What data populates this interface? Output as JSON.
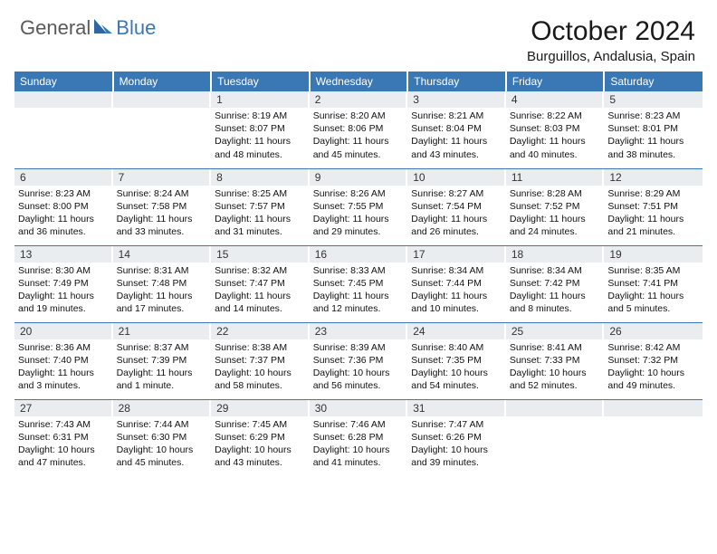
{
  "logo": {
    "general": "General",
    "blue": "Blue"
  },
  "title": "October 2024",
  "location": "Burguillos, Andalusia, Spain",
  "colors": {
    "header_bg": "#3a78b5",
    "header_text": "#ffffff",
    "daynum_bg": "#e9edf0",
    "row_border": "#3a78b5",
    "logo_gray": "#5a5a5a",
    "logo_blue": "#3a78b5"
  },
  "weekdays": [
    "Sunday",
    "Monday",
    "Tuesday",
    "Wednesday",
    "Thursday",
    "Friday",
    "Saturday"
  ],
  "weeks": [
    [
      {
        "n": "",
        "lines": [
          "",
          "",
          "",
          ""
        ]
      },
      {
        "n": "",
        "lines": [
          "",
          "",
          "",
          ""
        ]
      },
      {
        "n": "1",
        "lines": [
          "Sunrise: 8:19 AM",
          "Sunset: 8:07 PM",
          "Daylight: 11 hours",
          "and 48 minutes."
        ]
      },
      {
        "n": "2",
        "lines": [
          "Sunrise: 8:20 AM",
          "Sunset: 8:06 PM",
          "Daylight: 11 hours",
          "and 45 minutes."
        ]
      },
      {
        "n": "3",
        "lines": [
          "Sunrise: 8:21 AM",
          "Sunset: 8:04 PM",
          "Daylight: 11 hours",
          "and 43 minutes."
        ]
      },
      {
        "n": "4",
        "lines": [
          "Sunrise: 8:22 AM",
          "Sunset: 8:03 PM",
          "Daylight: 11 hours",
          "and 40 minutes."
        ]
      },
      {
        "n": "5",
        "lines": [
          "Sunrise: 8:23 AM",
          "Sunset: 8:01 PM",
          "Daylight: 11 hours",
          "and 38 minutes."
        ]
      }
    ],
    [
      {
        "n": "6",
        "lines": [
          "Sunrise: 8:23 AM",
          "Sunset: 8:00 PM",
          "Daylight: 11 hours",
          "and 36 minutes."
        ]
      },
      {
        "n": "7",
        "lines": [
          "Sunrise: 8:24 AM",
          "Sunset: 7:58 PM",
          "Daylight: 11 hours",
          "and 33 minutes."
        ]
      },
      {
        "n": "8",
        "lines": [
          "Sunrise: 8:25 AM",
          "Sunset: 7:57 PM",
          "Daylight: 11 hours",
          "and 31 minutes."
        ]
      },
      {
        "n": "9",
        "lines": [
          "Sunrise: 8:26 AM",
          "Sunset: 7:55 PM",
          "Daylight: 11 hours",
          "and 29 minutes."
        ]
      },
      {
        "n": "10",
        "lines": [
          "Sunrise: 8:27 AM",
          "Sunset: 7:54 PM",
          "Daylight: 11 hours",
          "and 26 minutes."
        ]
      },
      {
        "n": "11",
        "lines": [
          "Sunrise: 8:28 AM",
          "Sunset: 7:52 PM",
          "Daylight: 11 hours",
          "and 24 minutes."
        ]
      },
      {
        "n": "12",
        "lines": [
          "Sunrise: 8:29 AM",
          "Sunset: 7:51 PM",
          "Daylight: 11 hours",
          "and 21 minutes."
        ]
      }
    ],
    [
      {
        "n": "13",
        "lines": [
          "Sunrise: 8:30 AM",
          "Sunset: 7:49 PM",
          "Daylight: 11 hours",
          "and 19 minutes."
        ]
      },
      {
        "n": "14",
        "lines": [
          "Sunrise: 8:31 AM",
          "Sunset: 7:48 PM",
          "Daylight: 11 hours",
          "and 17 minutes."
        ]
      },
      {
        "n": "15",
        "lines": [
          "Sunrise: 8:32 AM",
          "Sunset: 7:47 PM",
          "Daylight: 11 hours",
          "and 14 minutes."
        ]
      },
      {
        "n": "16",
        "lines": [
          "Sunrise: 8:33 AM",
          "Sunset: 7:45 PM",
          "Daylight: 11 hours",
          "and 12 minutes."
        ]
      },
      {
        "n": "17",
        "lines": [
          "Sunrise: 8:34 AM",
          "Sunset: 7:44 PM",
          "Daylight: 11 hours",
          "and 10 minutes."
        ]
      },
      {
        "n": "18",
        "lines": [
          "Sunrise: 8:34 AM",
          "Sunset: 7:42 PM",
          "Daylight: 11 hours",
          "and 8 minutes."
        ]
      },
      {
        "n": "19",
        "lines": [
          "Sunrise: 8:35 AM",
          "Sunset: 7:41 PM",
          "Daylight: 11 hours",
          "and 5 minutes."
        ]
      }
    ],
    [
      {
        "n": "20",
        "lines": [
          "Sunrise: 8:36 AM",
          "Sunset: 7:40 PM",
          "Daylight: 11 hours",
          "and 3 minutes."
        ]
      },
      {
        "n": "21",
        "lines": [
          "Sunrise: 8:37 AM",
          "Sunset: 7:39 PM",
          "Daylight: 11 hours",
          "and 1 minute."
        ]
      },
      {
        "n": "22",
        "lines": [
          "Sunrise: 8:38 AM",
          "Sunset: 7:37 PM",
          "Daylight: 10 hours",
          "and 58 minutes."
        ]
      },
      {
        "n": "23",
        "lines": [
          "Sunrise: 8:39 AM",
          "Sunset: 7:36 PM",
          "Daylight: 10 hours",
          "and 56 minutes."
        ]
      },
      {
        "n": "24",
        "lines": [
          "Sunrise: 8:40 AM",
          "Sunset: 7:35 PM",
          "Daylight: 10 hours",
          "and 54 minutes."
        ]
      },
      {
        "n": "25",
        "lines": [
          "Sunrise: 8:41 AM",
          "Sunset: 7:33 PM",
          "Daylight: 10 hours",
          "and 52 minutes."
        ]
      },
      {
        "n": "26",
        "lines": [
          "Sunrise: 8:42 AM",
          "Sunset: 7:32 PM",
          "Daylight: 10 hours",
          "and 49 minutes."
        ]
      }
    ],
    [
      {
        "n": "27",
        "lines": [
          "Sunrise: 7:43 AM",
          "Sunset: 6:31 PM",
          "Daylight: 10 hours",
          "and 47 minutes."
        ]
      },
      {
        "n": "28",
        "lines": [
          "Sunrise: 7:44 AM",
          "Sunset: 6:30 PM",
          "Daylight: 10 hours",
          "and 45 minutes."
        ]
      },
      {
        "n": "29",
        "lines": [
          "Sunrise: 7:45 AM",
          "Sunset: 6:29 PM",
          "Daylight: 10 hours",
          "and 43 minutes."
        ]
      },
      {
        "n": "30",
        "lines": [
          "Sunrise: 7:46 AM",
          "Sunset: 6:28 PM",
          "Daylight: 10 hours",
          "and 41 minutes."
        ]
      },
      {
        "n": "31",
        "lines": [
          "Sunrise: 7:47 AM",
          "Sunset: 6:26 PM",
          "Daylight: 10 hours",
          "and 39 minutes."
        ]
      },
      {
        "n": "",
        "lines": [
          "",
          "",
          "",
          ""
        ]
      },
      {
        "n": "",
        "lines": [
          "",
          "",
          "",
          ""
        ]
      }
    ]
  ]
}
